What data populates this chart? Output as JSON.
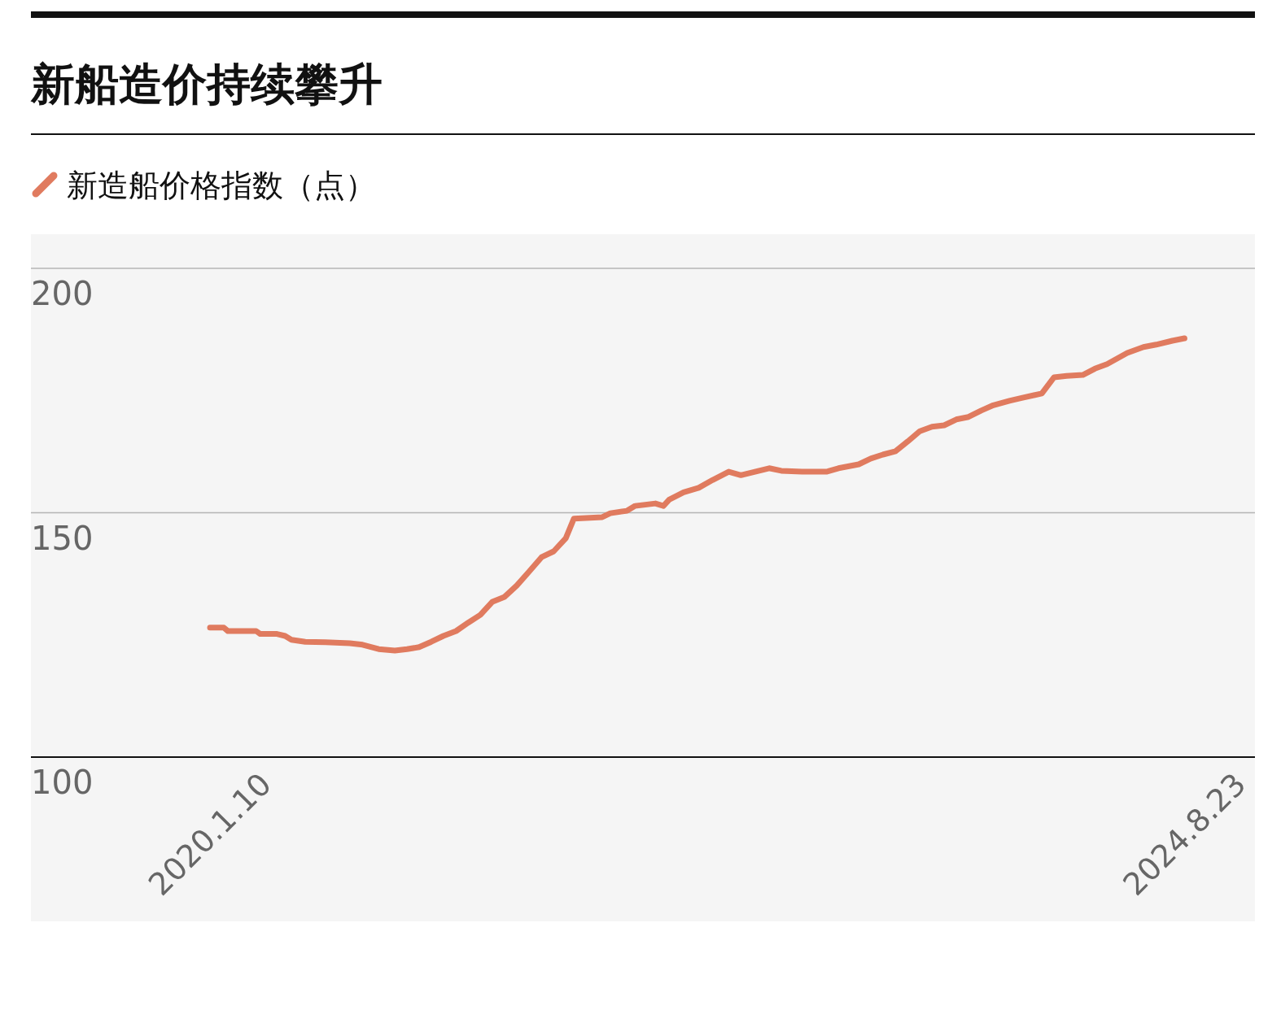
{
  "chart_data": {
    "type": "line",
    "title": "新船造价持续攀升",
    "x": [
      "2020-01-10",
      "2020-02-03",
      "2020-02-10",
      "2020-03-02",
      "2020-03-30",
      "2020-04-06",
      "2020-05-05",
      "2020-05-19",
      "2020-05-30",
      "2020-06-23",
      "2020-07-28",
      "2020-09-08",
      "2020-09-30",
      "2020-10-28",
      "2020-11-25",
      "2020-12-16",
      "2021-01-06",
      "2021-01-27",
      "2021-02-17",
      "2021-03-11",
      "2021-04-01",
      "2021-04-22",
      "2021-05-13",
      "2021-06-03",
      "2021-06-24",
      "2021-07-15",
      "2021-08-06",
      "2021-08-27",
      "2021-09-17",
      "2021-10-01",
      "2021-10-22",
      "2021-11-19",
      "2021-12-03",
      "2022-01-01",
      "2022-01-15",
      "2022-02-19",
      "2022-03-05",
      "2022-03-15",
      "2022-04-09",
      "2022-05-05",
      "2022-05-29",
      "2022-06-26",
      "2022-07-17",
      "2022-09-04",
      "2022-09-25",
      "2022-10-31",
      "2022-12-12",
      "2023-01-02",
      "2023-02-06",
      "2023-02-27",
      "2023-03-20",
      "2023-04-11",
      "2023-05-02",
      "2023-05-23",
      "2023-06-13",
      "2023-07-04",
      "2023-07-25",
      "2023-08-15",
      "2023-09-06",
      "2023-09-27",
      "2023-10-25",
      "2023-11-15",
      "2023-12-20",
      "2024-01-10",
      "2024-02-01",
      "2024-02-29",
      "2024-03-21",
      "2024-04-11",
      "2024-05-16",
      "2024-06-13",
      "2024-07-05",
      "2024-08-02",
      "2024-08-23"
    ],
    "series": [
      {
        "name": "新造船价格指数（点）",
        "color": "#e07b5f",
        "values": [
          126.5,
          126.5,
          125.8,
          125.8,
          125.8,
          125.2,
          125.2,
          124.8,
          124.0,
          123.6,
          123.5,
          123.3,
          123.0,
          122.1,
          121.8,
          122.1,
          122.5,
          123.6,
          124.8,
          125.8,
          127.5,
          129.1,
          131.8,
          132.8,
          135.1,
          137.9,
          140.9,
          142.1,
          144.8,
          148.8,
          148.9,
          149.1,
          149.9,
          150.4,
          151.4,
          151.9,
          151.4,
          152.7,
          154.2,
          155.1,
          156.7,
          158.4,
          157.7,
          159.1,
          158.6,
          158.4,
          158.4,
          159.1,
          159.9,
          161.1,
          161.9,
          162.6,
          164.6,
          166.7,
          167.6,
          167.9,
          169.1,
          169.6,
          170.9,
          172.0,
          172.9,
          173.5,
          174.4,
          177.7,
          178.0,
          178.2,
          179.5,
          180.4,
          182.7,
          183.9,
          184.4,
          185.2,
          185.7
        ]
      }
    ],
    "xlim": [
      "2019-03-06",
      "2024-12-23"
    ],
    "ylim": [
      100,
      207
    ],
    "xticks": [
      {
        "value": "2020-01-10",
        "label": "2020.1.10"
      },
      {
        "value": "2024-08-23",
        "label": "2024.8.23"
      }
    ],
    "yticks": [
      100,
      150,
      200
    ],
    "grid": "y",
    "legend": "top left"
  }
}
